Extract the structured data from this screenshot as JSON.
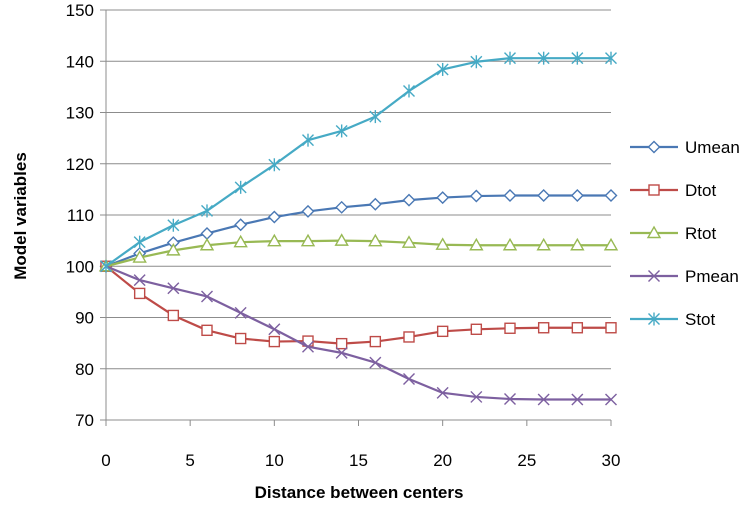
{
  "chart_data": {
    "type": "line",
    "title": "",
    "xlabel": "Distance between centers",
    "ylabel": "Model variables",
    "xlim": [
      0,
      30
    ],
    "ylim": [
      70,
      150
    ],
    "xticks": [
      0,
      5,
      10,
      15,
      20,
      25,
      30
    ],
    "yticks": [
      70,
      80,
      90,
      100,
      110,
      120,
      130,
      140,
      150
    ],
    "grid": "horizontal",
    "legend": "right",
    "x": [
      0,
      2,
      4,
      6,
      8,
      10,
      12,
      14,
      16,
      18,
      20,
      22,
      24,
      26,
      28,
      30
    ],
    "series": [
      {
        "name": "Umean",
        "color": "#4a78b4",
        "marker": "diamond",
        "values": [
          100,
          102.5,
          104.6,
          106.4,
          108.1,
          109.6,
          110.7,
          111.5,
          112.1,
          112.9,
          113.4,
          113.7,
          113.8,
          113.8,
          113.8,
          113.8
        ]
      },
      {
        "name": "Dtot",
        "color": "#be4b48",
        "marker": "square",
        "values": [
          100,
          94.7,
          90.4,
          87.5,
          85.9,
          85.3,
          85.4,
          84.9,
          85.3,
          86.2,
          87.3,
          87.7,
          87.9,
          88,
          88,
          88
        ]
      },
      {
        "name": "Rtot",
        "color": "#98b954",
        "marker": "triangle",
        "values": [
          100,
          101.7,
          103.1,
          104.1,
          104.7,
          104.9,
          104.9,
          105,
          104.9,
          104.6,
          104.2,
          104.1,
          104.1,
          104.1,
          104.1,
          104.1
        ]
      },
      {
        "name": "Pmean",
        "color": "#7d60a0",
        "marker": "x",
        "values": [
          100,
          97.3,
          95.7,
          94.1,
          90.9,
          87.7,
          84.3,
          83.1,
          81.2,
          78,
          75.3,
          74.5,
          74.1,
          74,
          74,
          74
        ]
      },
      {
        "name": "Stot",
        "color": "#46aac5",
        "marker": "star",
        "values": [
          100,
          104.7,
          108,
          110.8,
          115.4,
          119.8,
          124.6,
          126.4,
          129.2,
          134.2,
          138.4,
          139.9,
          140.6,
          140.6,
          140.6,
          140.6
        ]
      }
    ]
  }
}
